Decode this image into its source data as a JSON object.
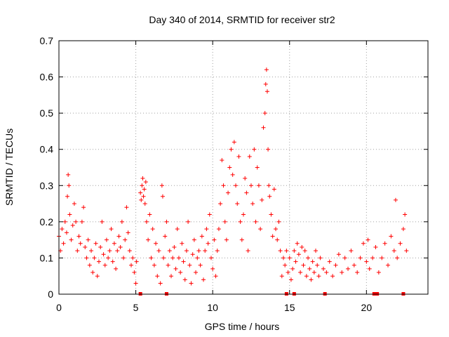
{
  "chart_data": {
    "type": "scatter",
    "title": "Day 340 of 2014, SRMTID for receiver str2",
    "xlabel": "GPS time / hours",
    "ylabel": "SRMTID / TECUs",
    "xlim": [
      0,
      24
    ],
    "ylim": [
      0,
      0.7
    ],
    "xticks": [
      0,
      5,
      10,
      15,
      20
    ],
    "yticks": [
      0,
      0.1,
      0.2,
      0.3,
      0.4,
      0.5,
      0.6,
      0.7
    ],
    "xtick_labels": [
      "0",
      "5",
      "10",
      "15",
      "20"
    ],
    "ytick_labels": [
      "0",
      "0.1",
      "0.2",
      "0.3",
      "0.4",
      "0.5",
      "0.6",
      "0.7"
    ],
    "grid": true,
    "marker": "+",
    "color": "#ff0000",
    "series": [
      {
        "name": "SRMTID",
        "points": [
          [
            0.0,
            0.16
          ],
          [
            0.1,
            0.12
          ],
          [
            0.2,
            0.18
          ],
          [
            0.3,
            0.14
          ],
          [
            0.4,
            0.2
          ],
          [
            0.5,
            0.17
          ],
          [
            0.55,
            0.27
          ],
          [
            0.6,
            0.33
          ],
          [
            0.65,
            0.3
          ],
          [
            0.7,
            0.22
          ],
          [
            0.8,
            0.15
          ],
          [
            0.9,
            0.19
          ],
          [
            1.0,
            0.25
          ],
          [
            1.1,
            0.2
          ],
          [
            1.2,
            0.12
          ],
          [
            1.3,
            0.16
          ],
          [
            1.4,
            0.14
          ],
          [
            1.5,
            0.2
          ],
          [
            1.6,
            0.24
          ],
          [
            1.7,
            0.13
          ],
          [
            1.8,
            0.1
          ],
          [
            1.9,
            0.15
          ],
          [
            2.0,
            0.08
          ],
          [
            2.1,
            0.12
          ],
          [
            2.2,
            0.06
          ],
          [
            2.3,
            0.1
          ],
          [
            2.4,
            0.14
          ],
          [
            2.5,
            0.05
          ],
          [
            2.6,
            0.09
          ],
          [
            2.7,
            0.13
          ],
          [
            2.8,
            0.2
          ],
          [
            2.9,
            0.11
          ],
          [
            3.0,
            0.08
          ],
          [
            3.1,
            0.15
          ],
          [
            3.2,
            0.1
          ],
          [
            3.3,
            0.12
          ],
          [
            3.4,
            0.18
          ],
          [
            3.5,
            0.09
          ],
          [
            3.6,
            0.14
          ],
          [
            3.7,
            0.07
          ],
          [
            3.8,
            0.12
          ],
          [
            3.9,
            0.16
          ],
          [
            4.0,
            0.13
          ],
          [
            4.1,
            0.2
          ],
          [
            4.2,
            0.1
          ],
          [
            4.3,
            0.15
          ],
          [
            4.4,
            0.24
          ],
          [
            4.5,
            0.17
          ],
          [
            4.6,
            0.12
          ],
          [
            4.7,
            0.08
          ],
          [
            4.8,
            0.1
          ],
          [
            4.9,
            0.06
          ],
          [
            5.0,
            0.03
          ],
          [
            5.05,
            0.09
          ],
          [
            5.3,
            0.28
          ],
          [
            5.35,
            0.26
          ],
          [
            5.4,
            0.3
          ],
          [
            5.45,
            0.32
          ],
          [
            5.5,
            0.27
          ],
          [
            5.55,
            0.29
          ],
          [
            5.6,
            0.25
          ],
          [
            5.65,
            0.31
          ],
          [
            5.7,
            0.2
          ],
          [
            5.8,
            0.15
          ],
          [
            5.9,
            0.22
          ],
          [
            6.0,
            0.1
          ],
          [
            6.1,
            0.18
          ],
          [
            6.2,
            0.08
          ],
          [
            6.3,
            0.14
          ],
          [
            6.4,
            0.05
          ],
          [
            6.5,
            0.12
          ],
          [
            6.6,
            0.03
          ],
          [
            6.7,
            0.3
          ],
          [
            6.75,
            0.27
          ],
          [
            6.8,
            0.1
          ],
          [
            6.9,
            0.16
          ],
          [
            7.0,
            0.2
          ],
          [
            7.1,
            0.08
          ],
          [
            7.2,
            0.12
          ],
          [
            7.3,
            0.05
          ],
          [
            7.4,
            0.1
          ],
          [
            7.5,
            0.13
          ],
          [
            7.6,
            0.07
          ],
          [
            7.7,
            0.18
          ],
          [
            7.8,
            0.1
          ],
          [
            7.9,
            0.06
          ],
          [
            8.0,
            0.14
          ],
          [
            8.1,
            0.09
          ],
          [
            8.2,
            0.04
          ],
          [
            8.3,
            0.12
          ],
          [
            8.4,
            0.2
          ],
          [
            8.5,
            0.08
          ],
          [
            8.6,
            0.03
          ],
          [
            8.7,
            0.11
          ],
          [
            8.8,
            0.15
          ],
          [
            8.9,
            0.06
          ],
          [
            9.0,
            0.1
          ],
          [
            9.1,
            0.12
          ],
          [
            9.2,
            0.08
          ],
          [
            9.3,
            0.16
          ],
          [
            9.4,
            0.04
          ],
          [
            9.5,
            0.12
          ],
          [
            9.6,
            0.18
          ],
          [
            9.7,
            0.14
          ],
          [
            9.8,
            0.22
          ],
          [
            9.9,
            0.1
          ],
          [
            10.0,
            0.07
          ],
          [
            10.1,
            0.15
          ],
          [
            10.2,
            0.05
          ],
          [
            10.3,
            0.12
          ],
          [
            10.4,
            0.18
          ],
          [
            10.5,
            0.25
          ],
          [
            10.6,
            0.37
          ],
          [
            10.7,
            0.3
          ],
          [
            10.8,
            0.2
          ],
          [
            10.9,
            0.15
          ],
          [
            11.0,
            0.28
          ],
          [
            11.1,
            0.35
          ],
          [
            11.2,
            0.4
          ],
          [
            11.3,
            0.33
          ],
          [
            11.4,
            0.42
          ],
          [
            11.5,
            0.3
          ],
          [
            11.6,
            0.25
          ],
          [
            11.7,
            0.38
          ],
          [
            11.8,
            0.2
          ],
          [
            11.9,
            0.15
          ],
          [
            12.0,
            0.22
          ],
          [
            12.1,
            0.32
          ],
          [
            12.2,
            0.28
          ],
          [
            12.3,
            0.12
          ],
          [
            12.4,
            0.38
          ],
          [
            12.5,
            0.3
          ],
          [
            12.6,
            0.25
          ],
          [
            12.7,
            0.4
          ],
          [
            12.8,
            0.2
          ],
          [
            12.9,
            0.35
          ],
          [
            13.0,
            0.3
          ],
          [
            13.1,
            0.18
          ],
          [
            13.2,
            0.26
          ],
          [
            13.3,
            0.46
          ],
          [
            13.4,
            0.5
          ],
          [
            13.45,
            0.58
          ],
          [
            13.5,
            0.62
          ],
          [
            13.55,
            0.56
          ],
          [
            13.6,
            0.4
          ],
          [
            13.65,
            0.3
          ],
          [
            13.7,
            0.27
          ],
          [
            13.8,
            0.22
          ],
          [
            13.9,
            0.16
          ],
          [
            14.0,
            0.29
          ],
          [
            14.1,
            0.18
          ],
          [
            14.2,
            0.15
          ],
          [
            14.3,
            0.2
          ],
          [
            14.4,
            0.12
          ],
          [
            14.5,
            0.05
          ],
          [
            14.6,
            0.1
          ],
          [
            14.7,
            0.08
          ],
          [
            14.8,
            0.12
          ],
          [
            14.9,
            0.06
          ],
          [
            15.0,
            0.1
          ],
          [
            15.1,
            0.04
          ],
          [
            15.2,
            0.07
          ],
          [
            15.3,
            0.12
          ],
          [
            15.4,
            0.09
          ],
          [
            15.5,
            0.14
          ],
          [
            15.6,
            0.11
          ],
          [
            15.7,
            0.06
          ],
          [
            15.8,
            0.13
          ],
          [
            15.9,
            0.08
          ],
          [
            16.0,
            0.12
          ],
          [
            16.1,
            0.05
          ],
          [
            16.2,
            0.1
          ],
          [
            16.3,
            0.07
          ],
          [
            16.4,
            0.04
          ],
          [
            16.5,
            0.09
          ],
          [
            16.6,
            0.06
          ],
          [
            16.7,
            0.12
          ],
          [
            16.8,
            0.08
          ],
          [
            16.9,
            0.05
          ],
          [
            17.0,
            0.1
          ],
          [
            17.2,
            0.07
          ],
          [
            17.4,
            0.06
          ],
          [
            17.6,
            0.09
          ],
          [
            17.8,
            0.05
          ],
          [
            18.0,
            0.08
          ],
          [
            18.2,
            0.11
          ],
          [
            18.4,
            0.06
          ],
          [
            18.6,
            0.1
          ],
          [
            18.8,
            0.07
          ],
          [
            19.0,
            0.12
          ],
          [
            19.2,
            0.08
          ],
          [
            19.4,
            0.06
          ],
          [
            19.6,
            0.1
          ],
          [
            19.8,
            0.14
          ],
          [
            20.0,
            0.09
          ],
          [
            20.1,
            0.15
          ],
          [
            20.2,
            0.07
          ],
          [
            20.4,
            0.1
          ],
          [
            20.6,
            0.13
          ],
          [
            20.8,
            0.06
          ],
          [
            21.0,
            0.1
          ],
          [
            21.2,
            0.14
          ],
          [
            21.4,
            0.08
          ],
          [
            21.6,
            0.16
          ],
          [
            21.8,
            0.12
          ],
          [
            21.9,
            0.26
          ],
          [
            22.0,
            0.1
          ],
          [
            22.2,
            0.14
          ],
          [
            22.4,
            0.18
          ],
          [
            22.5,
            0.22
          ],
          [
            22.6,
            0.12
          ]
        ]
      }
    ],
    "zero_markers": [
      5.3,
      7.0,
      14.8,
      15.3,
      17.3,
      20.5,
      20.7,
      22.4
    ]
  }
}
